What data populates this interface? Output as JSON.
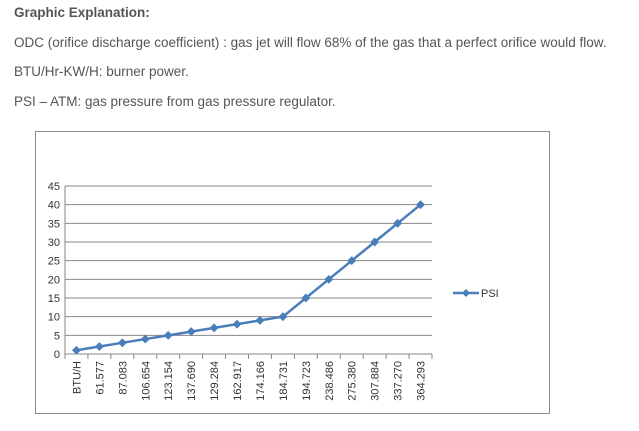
{
  "document": {
    "heading": "Graphic Explanation:",
    "lines": [
      "ODC (orifice discharge coefficient) : gas jet will flow 68% of the gas that a perfect orifice would flow.",
      "BTU/Hr-KW/H: burner power.",
      "PSI – ATM: gas pressure from gas pressure regulator."
    ]
  },
  "chart_data": {
    "type": "line",
    "title": "",
    "xlabel": "",
    "ylabel": "",
    "categories": [
      "BTU/H",
      "61.577",
      "87.083",
      "106.654",
      "123.154",
      "137.690",
      "129.284",
      "162.917",
      "174.166",
      "184.731",
      "194.723",
      "238.486",
      "275.380",
      "307.884",
      "337.270",
      "364.293"
    ],
    "series": [
      {
        "name": "PSI",
        "values": [
          1,
          2,
          3,
          4,
          5,
          6,
          7,
          8,
          9,
          10,
          15,
          20,
          25,
          30,
          35,
          40
        ]
      }
    ],
    "ylim": [
      0,
      45
    ],
    "yticks": [
      0,
      5,
      10,
      15,
      20,
      25,
      30,
      35,
      40,
      45
    ],
    "grid": true,
    "legend_position": "right",
    "line_color": "#4a7ebb"
  }
}
